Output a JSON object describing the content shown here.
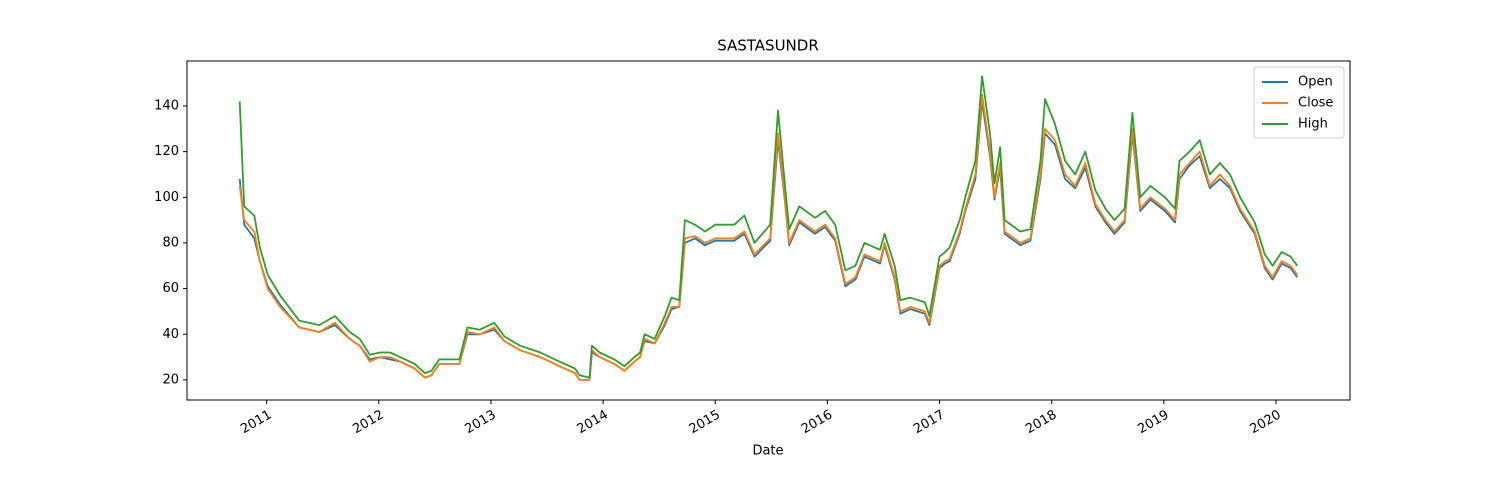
{
  "chart_data": {
    "type": "line",
    "title": "SASTASUNDR",
    "x_label": "Date",
    "x": [
      2010.76,
      2010.8,
      2010.89,
      2010.94,
      2011.01,
      2011.12,
      2011.29,
      2011.47,
      2011.61,
      2011.74,
      2011.83,
      2011.92,
      2012.01,
      2012.1,
      2012.19,
      2012.32,
      2012.41,
      2012.47,
      2012.54,
      2012.72,
      2012.79,
      2012.9,
      2013.03,
      2013.12,
      2013.26,
      2013.44,
      2013.61,
      2013.75,
      2013.79,
      2013.88,
      2013.9,
      2013.97,
      2014.1,
      2014.19,
      2014.28,
      2014.33,
      2014.37,
      2014.46,
      2014.55,
      2014.61,
      2014.68,
      2014.73,
      2014.82,
      2014.91,
      2015.0,
      2015.17,
      2015.26,
      2015.35,
      2015.49,
      2015.56,
      2015.62,
      2015.66,
      2015.75,
      2015.89,
      2015.98,
      2016.07,
      2016.16,
      2016.25,
      2016.33,
      2016.47,
      2016.51,
      2016.6,
      2016.65,
      2016.74,
      2016.87,
      2016.91,
      2017.0,
      2017.05,
      2017.09,
      2017.18,
      2017.23,
      2017.32,
      2017.38,
      2017.45,
      2017.49,
      2017.54,
      2017.58,
      2017.72,
      2017.81,
      2017.9,
      2017.94,
      2018.03,
      2018.12,
      2018.21,
      2018.3,
      2018.39,
      2018.48,
      2018.56,
      2018.65,
      2018.72,
      2018.79,
      2018.88,
      2019.01,
      2019.1,
      2019.14,
      2019.23,
      2019.32,
      2019.41,
      2019.5,
      2019.59,
      2019.68,
      2019.81,
      2019.9,
      2019.97,
      2020.05,
      2020.13,
      2020.19
    ],
    "series": [
      {
        "name": "Open",
        "color": "#1f77b4",
        "values": [
          108,
          88,
          82,
          72,
          61,
          53,
          43,
          41,
          44,
          38,
          35,
          29,
          30,
          29,
          28,
          25,
          21,
          22,
          27,
          27,
          40,
          40,
          42,
          37,
          33,
          30,
          26,
          23,
          20,
          20,
          32,
          30,
          27,
          24,
          28,
          30,
          37,
          36,
          44,
          51,
          52,
          80,
          82,
          79,
          81,
          81,
          84,
          74,
          81,
          125,
          99,
          79,
          89,
          84,
          87,
          81,
          61,
          64,
          74,
          71,
          79,
          64,
          49,
          51,
          49,
          44,
          69,
          71,
          72,
          84,
          94,
          108,
          142,
          118,
          99,
          113,
          84,
          79,
          81,
          108,
          128,
          123,
          108,
          104,
          113,
          96,
          89,
          84,
          89,
          128,
          94,
          99,
          94,
          89,
          108,
          114,
          118,
          104,
          108,
          104,
          94,
          84,
          69,
          64,
          71,
          69,
          65
        ]
      },
      {
        "name": "Close",
        "color": "#ff7f0e",
        "values": [
          105,
          90,
          85,
          72,
          60,
          52,
          43,
          41,
          45,
          38,
          35,
          28,
          30,
          30,
          28,
          25,
          21,
          22,
          27,
          27,
          41,
          40,
          43,
          37,
          33,
          30,
          26,
          23,
          20,
          20,
          33,
          30,
          27,
          24,
          28,
          30,
          38,
          36,
          45,
          52,
          52,
          82,
          83,
          80,
          82,
          82,
          85,
          75,
          82,
          128,
          100,
          80,
          90,
          85,
          88,
          82,
          62,
          65,
          75,
          72,
          80,
          65,
          50,
          52,
          50,
          45,
          70,
          72,
          73,
          85,
          95,
          110,
          145,
          120,
          100,
          115,
          85,
          80,
          82,
          110,
          130,
          125,
          110,
          105,
          115,
          97,
          90,
          85,
          90,
          130,
          95,
          100,
          95,
          90,
          110,
          115,
          120,
          105,
          110,
          105,
          95,
          85,
          70,
          65,
          72,
          70,
          66
        ]
      },
      {
        "name": "High",
        "color": "#2ca02c",
        "values": [
          142,
          96,
          92,
          78,
          66,
          57,
          46,
          44,
          48,
          41,
          38,
          31,
          32,
          32,
          30,
          27,
          23,
          24,
          29,
          29,
          43,
          42,
          45,
          39,
          35,
          32,
          28,
          25,
          22,
          21,
          35,
          32,
          29,
          26,
          30,
          32,
          40,
          38,
          48,
          56,
          55,
          90,
          88,
          85,
          88,
          88,
          92,
          80,
          88,
          138,
          106,
          86,
          96,
          91,
          94,
          88,
          68,
          70,
          80,
          77,
          84,
          70,
          55,
          56,
          54,
          48,
          74,
          76,
          78,
          90,
          100,
          116,
          153,
          128,
          106,
          122,
          90,
          85,
          86,
          116,
          143,
          132,
          116,
          110,
          120,
          103,
          95,
          90,
          95,
          137,
          100,
          105,
          100,
          95,
          116,
          120,
          125,
          110,
          115,
          110,
          100,
          89,
          75,
          70,
          76,
          74,
          70
        ]
      }
    ],
    "xlim": [
      2010.29,
      2020.66
    ],
    "xticks": [
      2011,
      2012,
      2013,
      2014,
      2015,
      2016,
      2017,
      2018,
      2019,
      2020
    ],
    "ylim": [
      11.2,
      159.7
    ],
    "yticks": [
      20,
      40,
      60,
      80,
      100,
      120,
      140
    ],
    "legend": "upper right",
    "grid": false
  }
}
